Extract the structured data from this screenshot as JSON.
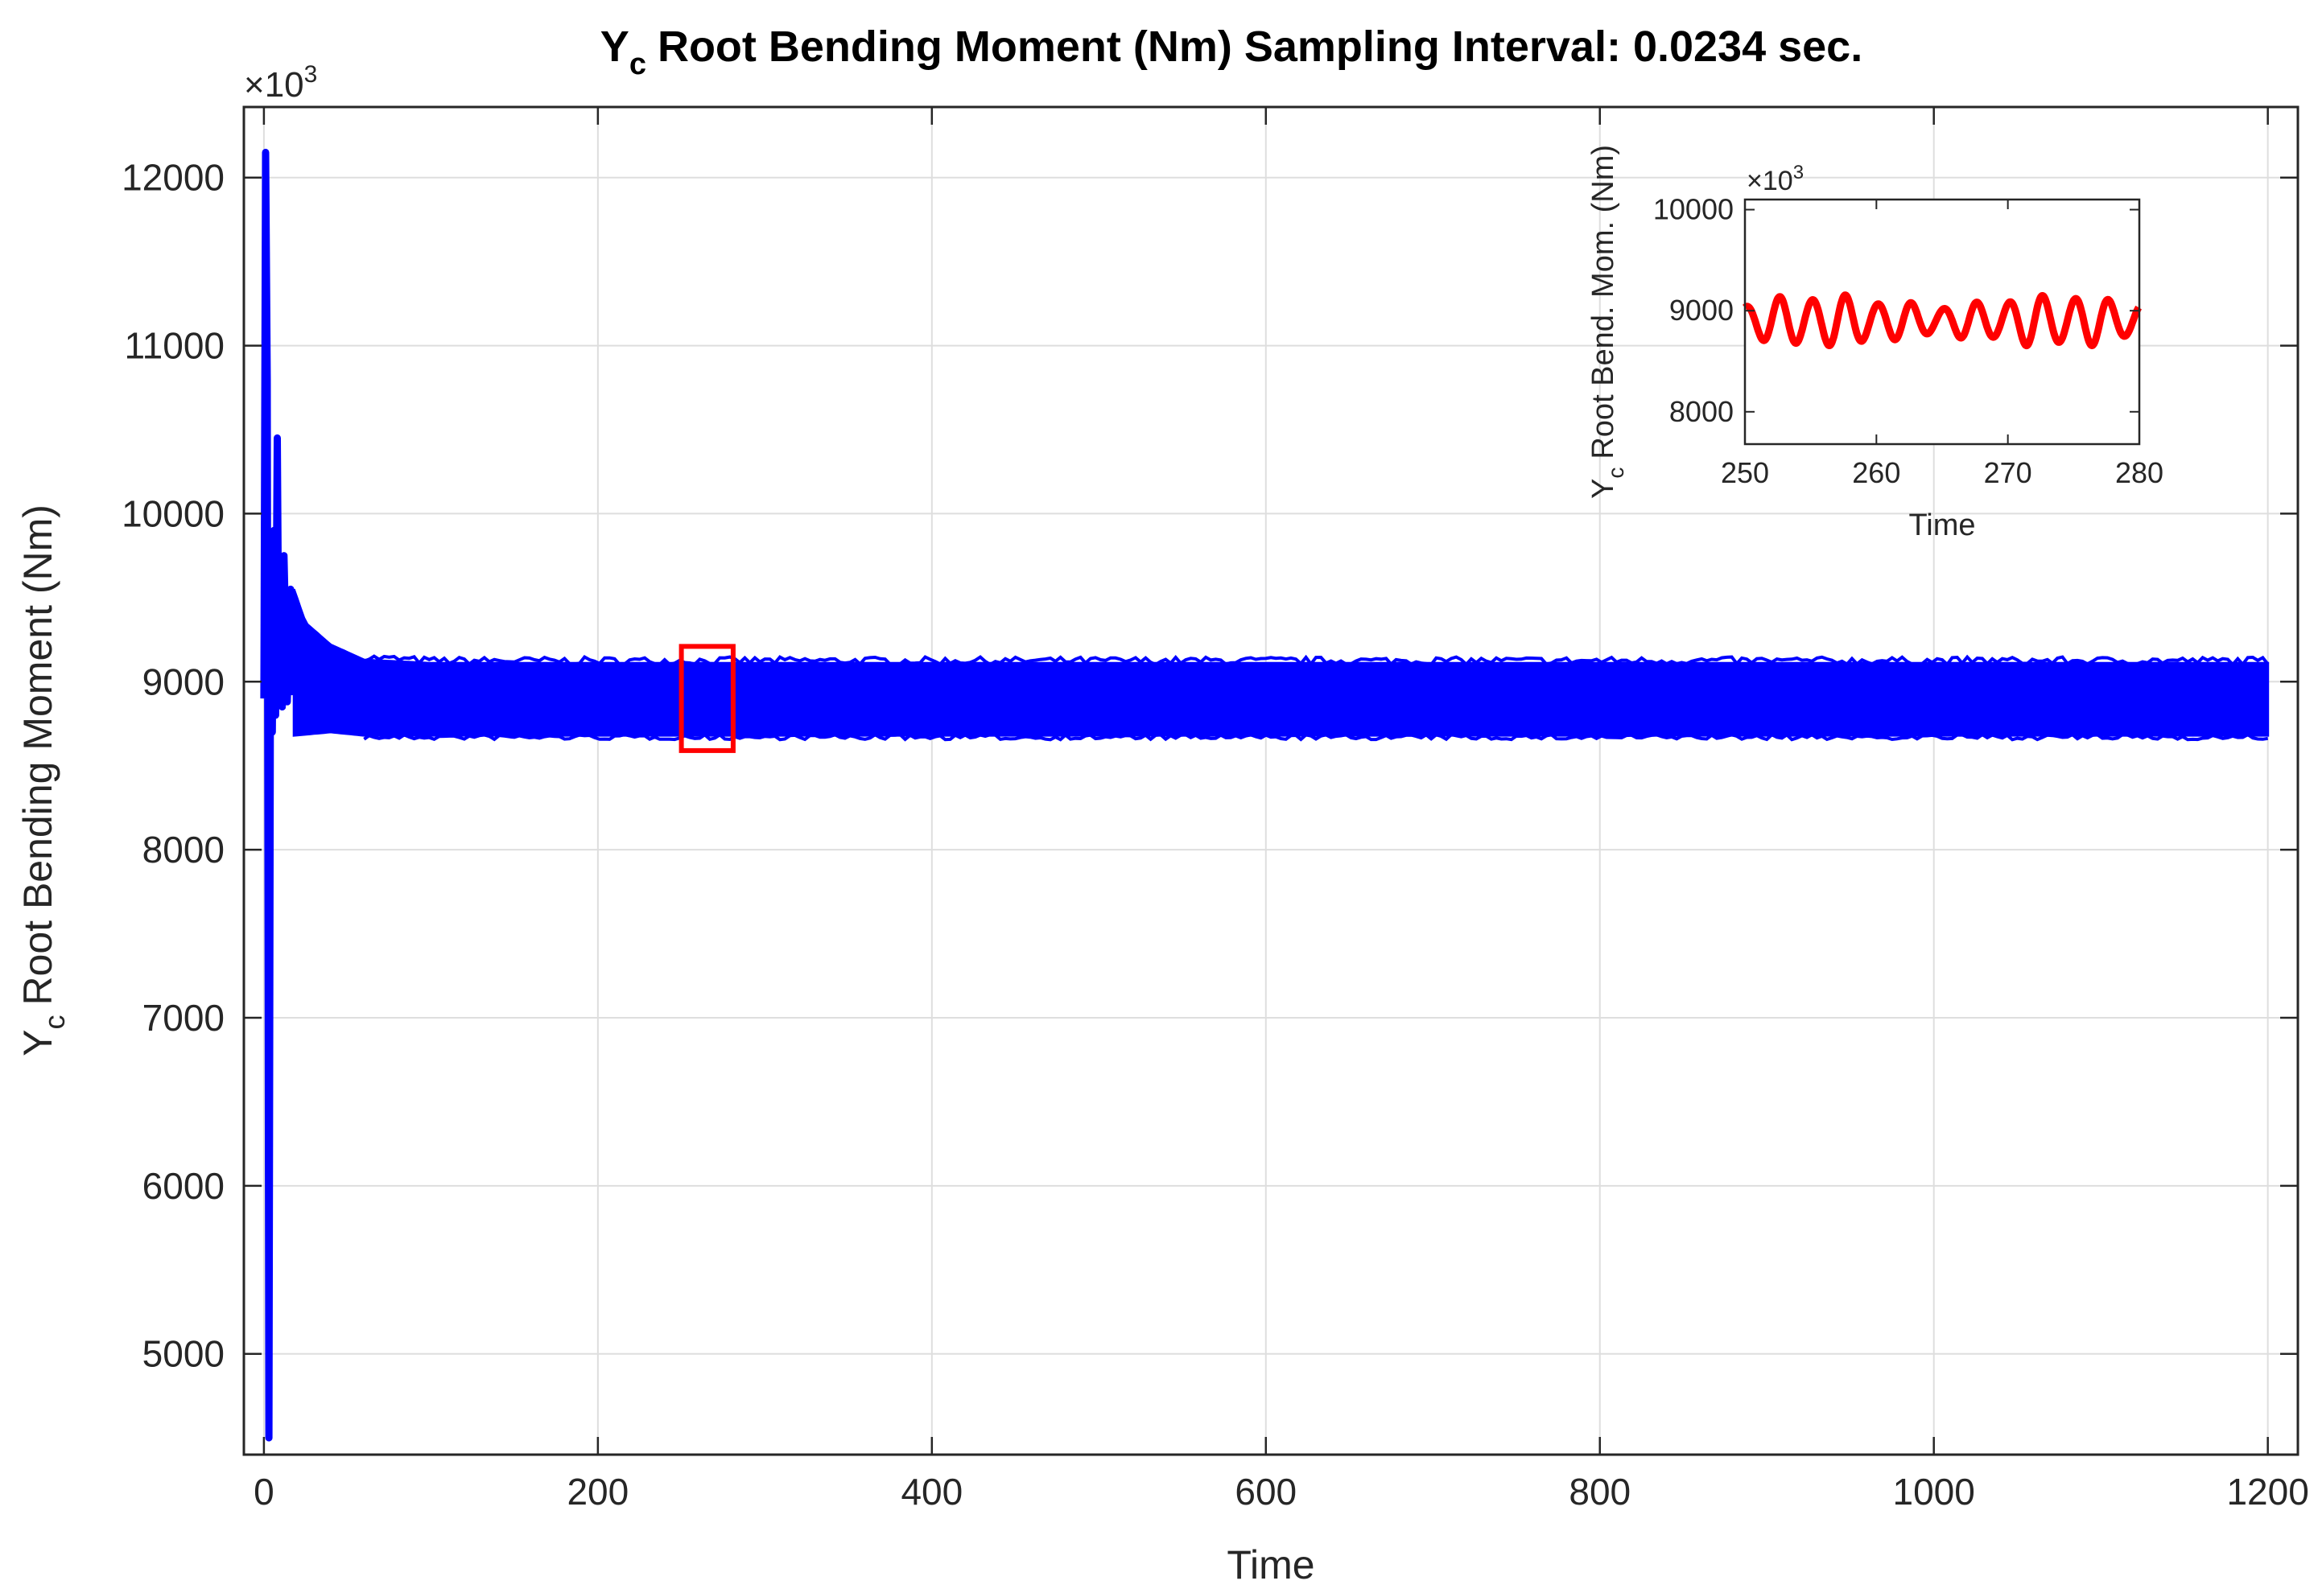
{
  "chart_data": [
    {
      "type": "line",
      "title": "Y_c Root Bending Moment (Nm) Sampling Interval: 0.0234 sec.",
      "title_parts": {
        "main": "Y",
        "sub": "c",
        "rest": "Root Bending Moment (Nm) Sampling Interval: 0.0234 sec."
      },
      "xlabel": "Time",
      "ylabel": "Y_c Root Bending Moment (Nm)",
      "ylabel_parts": {
        "main": "Y",
        "sub": "c",
        "rest": "Root Bending Moment (Nm)"
      },
      "y_multiplier": {
        "base": "×10",
        "exp": "3"
      },
      "xlim": [
        -12,
        1218
      ],
      "ylim": [
        4400,
        12420
      ],
      "xticks": [
        0,
        200,
        400,
        600,
        800,
        1000,
        1200
      ],
      "xtick_labels": [
        "0",
        "200",
        "400",
        "600",
        "800",
        "1000",
        "1200"
      ],
      "yticks": [
        5000,
        6000,
        7000,
        8000,
        9000,
        10000,
        11000,
        12000
      ],
      "ytick_labels": [
        "5000",
        "6000",
        "7000",
        "8000",
        "9000",
        "10000",
        "11000",
        "12000"
      ],
      "grid": true,
      "series": [
        {
          "color": "#0000ff",
          "transient": [
            [
              0,
              8900
            ],
            [
              1,
              12150
            ],
            [
              2,
              10800
            ],
            [
              3,
              4500
            ],
            [
              4,
              9700
            ],
            [
              5,
              8700
            ],
            [
              6,
              9900
            ],
            [
              7,
              8800
            ],
            [
              8,
              10450
            ],
            [
              9,
              8900
            ],
            [
              10,
              9600
            ],
            [
              11,
              8850
            ],
            [
              12,
              9750
            ],
            [
              14,
              8880
            ],
            [
              16,
              9550
            ],
            [
              18,
              8920
            ]
          ],
          "envelope_upper": [
            [
              18,
              9550
            ],
            [
              25,
              9350
            ],
            [
              40,
              9220
            ],
            [
              60,
              9130
            ],
            [
              100,
              9110
            ],
            [
              1200,
              9110
            ]
          ],
          "envelope_lower": [
            [
              18,
              8680
            ],
            [
              40,
              8700
            ],
            [
              60,
              8680
            ],
            [
              100,
              8680
            ],
            [
              1200,
              8680
            ]
          ],
          "envelope_center": 8900
        }
      ],
      "highlight_box": {
        "x": [
          250,
          281
        ],
        "y": [
          8590,
          9210
        ],
        "color": "#ff0000"
      }
    },
    {
      "type": "line",
      "title": "",
      "xlabel": "Time",
      "ylabel": "Y_c Root Bend. Mom. (Nm)",
      "ylabel_parts": {
        "main": "Y",
        "sub": "c",
        "rest": "Root Bend. Mom. (Nm)"
      },
      "y_multiplier": {
        "base": "×10",
        "exp": "3"
      },
      "xlim": [
        250,
        280
      ],
      "ylim": [
        7680,
        10100
      ],
      "xticks": [
        250,
        260,
        270,
        280
      ],
      "xtick_labels": [
        "250",
        "260",
        "270",
        "280"
      ],
      "yticks": [
        8000,
        9000,
        10000
      ],
      "ytick_labels": [
        "8000",
        "9000",
        "10000"
      ],
      "grid": false,
      "series": [
        {
          "color": "#ff0000",
          "center": 8900,
          "amplitude": 190,
          "period_s": 2.5
        }
      ]
    }
  ]
}
